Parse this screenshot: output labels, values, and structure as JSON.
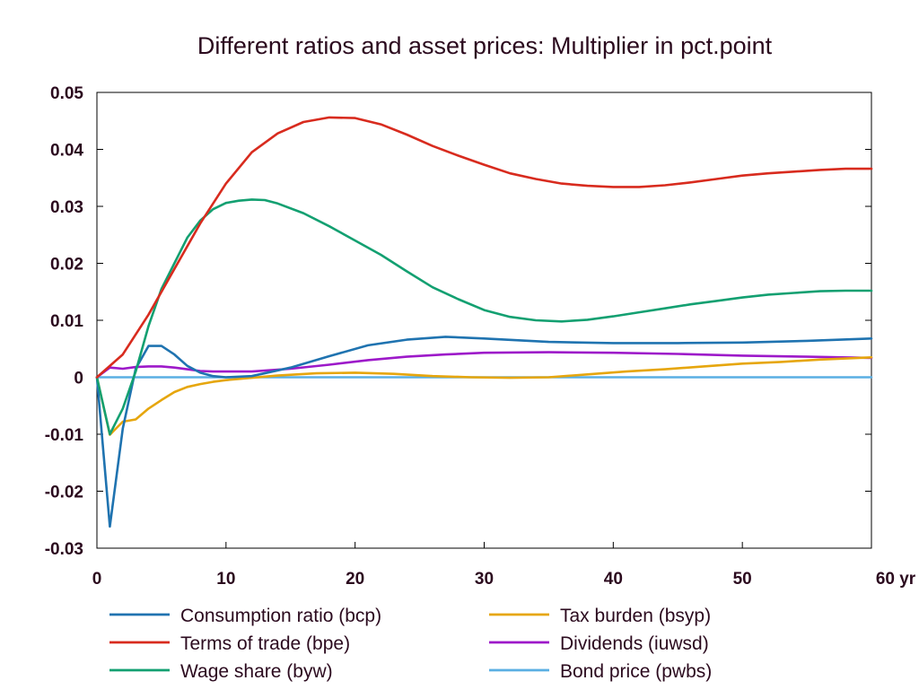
{
  "chart_data": {
    "type": "line",
    "title": "Different ratios and asset prices: Multiplier in pct.point",
    "xlabel": "",
    "ylabel": "",
    "xlim": [
      0,
      60
    ],
    "ylim": [
      -0.03,
      0.05
    ],
    "x_ticks": [
      0,
      10,
      20,
      30,
      40,
      50,
      60
    ],
    "x_tick_labels": [
      "0",
      "10",
      "20",
      "30",
      "40",
      "50",
      "60 yr"
    ],
    "y_ticks": [
      -0.03,
      -0.02,
      -0.01,
      0,
      0.01,
      0.02,
      0.03,
      0.04,
      0.05
    ],
    "y_tick_labels": [
      "-0.03",
      "-0.02",
      "-0.01",
      "0",
      "0.01",
      "0.02",
      "0.03",
      "0.04",
      "0.05"
    ],
    "grid": false,
    "legend_position": "bottom",
    "series": [
      {
        "name": "Consumption ratio (bcp)",
        "color": "#1f73b0",
        "points": [
          [
            0,
            0
          ],
          [
            1,
            -0.0262
          ],
          [
            2,
            -0.009
          ],
          [
            3,
            0.0015
          ],
          [
            4,
            0.0055
          ],
          [
            5,
            0.0055
          ],
          [
            6,
            0.004
          ],
          [
            7,
            0.002
          ],
          [
            8,
            0.0008
          ],
          [
            9,
            0.0002
          ],
          [
            10,
            0
          ],
          [
            12,
            0.0002
          ],
          [
            15,
            0.0017
          ],
          [
            18,
            0.0037
          ],
          [
            21,
            0.0056
          ],
          [
            24,
            0.0066
          ],
          [
            27,
            0.0071
          ],
          [
            30,
            0.0068
          ],
          [
            35,
            0.0062
          ],
          [
            40,
            0.006
          ],
          [
            45,
            0.006
          ],
          [
            50,
            0.0061
          ],
          [
            55,
            0.0064
          ],
          [
            60,
            0.0068
          ]
        ]
      },
      {
        "name": "Terms of trade (bpe)",
        "color": "#d82b1e",
        "points": [
          [
            0,
            0
          ],
          [
            2,
            0.004
          ],
          [
            4,
            0.011
          ],
          [
            6,
            0.019
          ],
          [
            8,
            0.027
          ],
          [
            10,
            0.034
          ],
          [
            12,
            0.0395
          ],
          [
            14,
            0.0428
          ],
          [
            16,
            0.0448
          ],
          [
            18,
            0.0456
          ],
          [
            20,
            0.0455
          ],
          [
            22,
            0.0444
          ],
          [
            24,
            0.0426
          ],
          [
            26,
            0.0406
          ],
          [
            28,
            0.0389
          ],
          [
            30,
            0.0373
          ],
          [
            32,
            0.0358
          ],
          [
            34,
            0.0348
          ],
          [
            36,
            0.034
          ],
          [
            38,
            0.0336
          ],
          [
            40,
            0.0334
          ],
          [
            42,
            0.0334
          ],
          [
            44,
            0.0337
          ],
          [
            46,
            0.0342
          ],
          [
            48,
            0.0348
          ],
          [
            50,
            0.0354
          ],
          [
            52,
            0.0358
          ],
          [
            54,
            0.0361
          ],
          [
            56,
            0.0364
          ],
          [
            58,
            0.0366
          ],
          [
            60,
            0.0366
          ]
        ]
      },
      {
        "name": "Wage share (byw)",
        "color": "#13a071",
        "points": [
          [
            0,
            0
          ],
          [
            1,
            -0.01
          ],
          [
            2,
            -0.0055
          ],
          [
            3,
            0.001
          ],
          [
            4,
            0.009
          ],
          [
            5,
            0.0155
          ],
          [
            6,
            0.02
          ],
          [
            7,
            0.0245
          ],
          [
            8,
            0.0275
          ],
          [
            9,
            0.0295
          ],
          [
            10,
            0.0306
          ],
          [
            11,
            0.031
          ],
          [
            12,
            0.0312
          ],
          [
            13,
            0.0311
          ],
          [
            14,
            0.0305
          ],
          [
            16,
            0.0288
          ],
          [
            18,
            0.0265
          ],
          [
            20,
            0.024
          ],
          [
            22,
            0.0215
          ],
          [
            24,
            0.0186
          ],
          [
            26,
            0.0158
          ],
          [
            28,
            0.0137
          ],
          [
            30,
            0.0118
          ],
          [
            32,
            0.0106
          ],
          [
            34,
            0.01
          ],
          [
            36,
            0.0098
          ],
          [
            38,
            0.0101
          ],
          [
            40,
            0.0107
          ],
          [
            42,
            0.0114
          ],
          [
            44,
            0.0121
          ],
          [
            46,
            0.0128
          ],
          [
            48,
            0.0134
          ],
          [
            50,
            0.014
          ],
          [
            52,
            0.0145
          ],
          [
            54,
            0.0148
          ],
          [
            56,
            0.0151
          ],
          [
            58,
            0.0152
          ],
          [
            60,
            0.0152
          ]
        ]
      },
      {
        "name": "Tax burden (bsyp)",
        "color": "#e6a60d",
        "points": [
          [
            0,
            0
          ],
          [
            1,
            -0.0101
          ],
          [
            2,
            -0.0078
          ],
          [
            3,
            -0.0074
          ],
          [
            4,
            -0.0055
          ],
          [
            5,
            -0.004
          ],
          [
            6,
            -0.0026
          ],
          [
            7,
            -0.0017
          ],
          [
            8,
            -0.0012
          ],
          [
            9,
            -0.0008
          ],
          [
            10,
            -0.0005
          ],
          [
            12,
            -0.0001
          ],
          [
            14,
            0.0003
          ],
          [
            17,
            0.0007
          ],
          [
            20,
            0.0008
          ],
          [
            23,
            0.0006
          ],
          [
            26,
            0.0002
          ],
          [
            29,
            0
          ],
          [
            32,
            -0.0001
          ],
          [
            35,
            0
          ],
          [
            38,
            0.0005
          ],
          [
            41,
            0.001
          ],
          [
            44,
            0.0014
          ],
          [
            47,
            0.0019
          ],
          [
            50,
            0.0024
          ],
          [
            53,
            0.0027
          ],
          [
            56,
            0.0031
          ],
          [
            60,
            0.0035
          ]
        ]
      },
      {
        "name": "Dividends (iuwsd)",
        "color": "#9d19c9",
        "points": [
          [
            0,
            0
          ],
          [
            1,
            0.0017
          ],
          [
            2,
            0.0015
          ],
          [
            3,
            0.0018
          ],
          [
            4,
            0.0019
          ],
          [
            5,
            0.0019
          ],
          [
            6,
            0.0017
          ],
          [
            7,
            0.0014
          ],
          [
            8,
            0.0011
          ],
          [
            9,
            0.001
          ],
          [
            10,
            0.001
          ],
          [
            12,
            0.001
          ],
          [
            15,
            0.0015
          ],
          [
            18,
            0.0022
          ],
          [
            21,
            0.003
          ],
          [
            24,
            0.0036
          ],
          [
            27,
            0.004
          ],
          [
            30,
            0.0043
          ],
          [
            35,
            0.0044
          ],
          [
            40,
            0.0043
          ],
          [
            45,
            0.0041
          ],
          [
            50,
            0.0038
          ],
          [
            55,
            0.0036
          ],
          [
            60,
            0.0034
          ]
        ]
      },
      {
        "name": "Bond price (pwbs)",
        "color": "#5aafe3",
        "points": [
          [
            0,
            0
          ],
          [
            60,
            0
          ]
        ]
      }
    ]
  }
}
